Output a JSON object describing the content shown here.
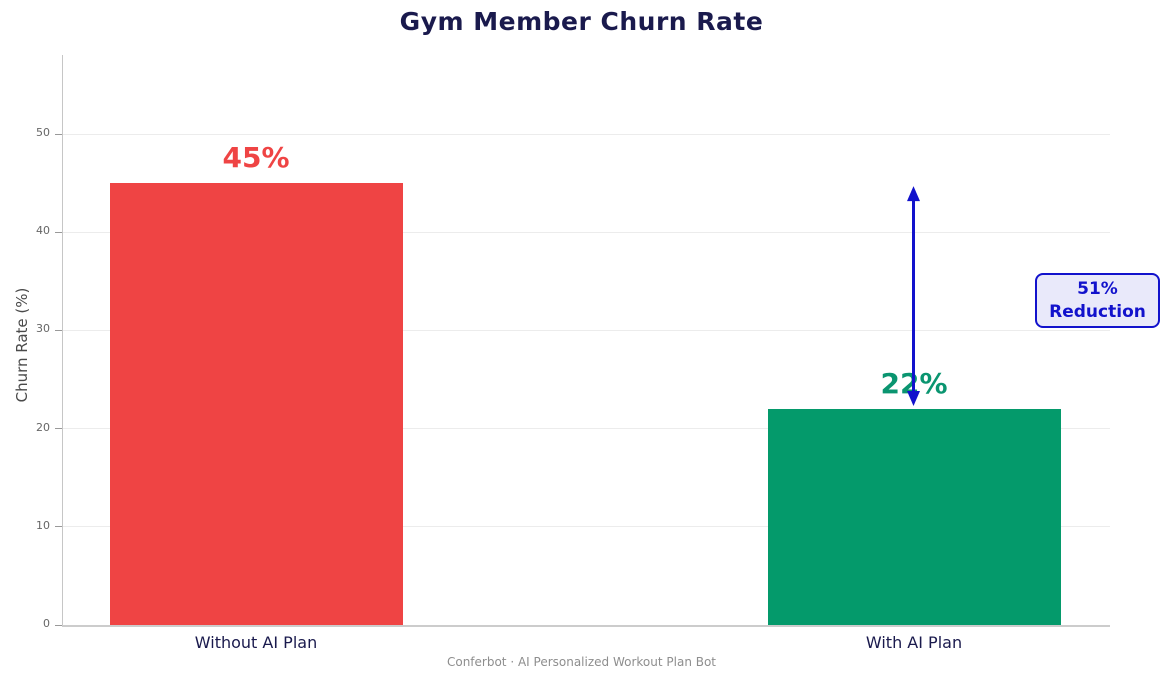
{
  "chart_data": {
    "type": "bar",
    "title": "Gym Member Churn Rate",
    "xlabel": "",
    "ylabel": "Churn Rate (%)",
    "categories": [
      "Without AI Plan",
      "With AI Plan"
    ],
    "values": [
      45,
      22
    ],
    "value_labels": [
      "45%",
      "22%"
    ],
    "bar_colors": [
      "#ef4444",
      "#049a6b"
    ],
    "value_label_colors": [
      "#ef4444",
      "#0a9570"
    ],
    "yticks": [
      0,
      10,
      20,
      30,
      40,
      50
    ],
    "ylim": [
      0,
      58
    ],
    "grid": true,
    "legend_position": "none",
    "annotation": {
      "text": "51% Reduction",
      "line1": "51%",
      "line2": "Reduction",
      "arrow_from_value": 45,
      "arrow_to_value": 22,
      "color": "#1212cc",
      "background": "#e9e9fa"
    },
    "footer": "Conferbot · AI Personalized Workout Plan Bot",
    "colors": {
      "title": "#1a1a4d",
      "axis_spine": "#cccccc",
      "gridline": "#ececec",
      "tick_label": "#666666",
      "category_label": "#1a1a4d",
      "footer": "#8e8e8e"
    }
  }
}
